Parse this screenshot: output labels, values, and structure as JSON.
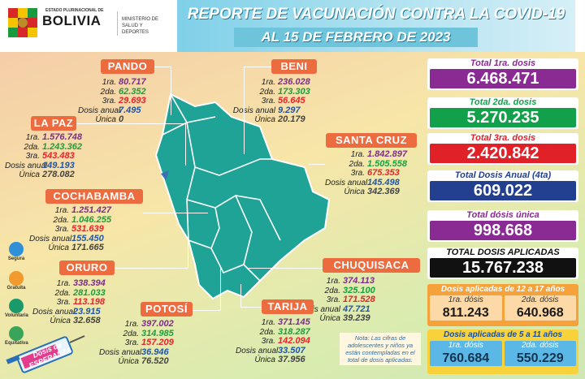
{
  "header": {
    "estado": "ESTADO PLURINACIONAL DE",
    "country": "BOLIVIA",
    "ministry_line1": "MINISTERIO DE",
    "ministry_line2": "SALUD Y DEPORTES",
    "title": "REPORTE DE VACUNACIÓN CONTRA LA COVID-19",
    "date": "AL 15 DE FEBRERO DE 2023"
  },
  "departments": {
    "pando": {
      "name": "PANDO",
      "rows": [
        {
          "k": "1ra.",
          "v": "80.717"
        },
        {
          "k": "2da.",
          "v": "62.352"
        },
        {
          "k": "3ra.",
          "v": "29.693"
        },
        {
          "k": "Dosis anual",
          "v": "7.495"
        },
        {
          "k": "Única",
          "v": "0"
        }
      ]
    },
    "beni": {
      "name": "BENI",
      "rows": [
        {
          "k": "1ra.",
          "v": "236.028"
        },
        {
          "k": "2da.",
          "v": "173.303"
        },
        {
          "k": "3ra.",
          "v": "56.645"
        },
        {
          "k": "Dosis anual",
          "v": "9.297"
        },
        {
          "k": "Única",
          "v": "20.179"
        }
      ]
    },
    "lapaz": {
      "name": "LA PAZ",
      "rows": [
        {
          "k": "1ra.",
          "v": "1.576.748"
        },
        {
          "k": "2da.",
          "v": "1.243.362"
        },
        {
          "k": "3ra.",
          "v": "543.483"
        },
        {
          "k": "Dosis anual",
          "v": "149.193"
        },
        {
          "k": "Única",
          "v": "278.082"
        }
      ]
    },
    "santacruz": {
      "name": "SANTA CRUZ",
      "rows": [
        {
          "k": "1ra.",
          "v": "1.842.897"
        },
        {
          "k": "2da.",
          "v": "1.505.558"
        },
        {
          "k": "3ra.",
          "v": "675.353"
        },
        {
          "k": "Dosis anual",
          "v": "145.498"
        },
        {
          "k": "Única",
          "v": "342.369"
        }
      ]
    },
    "cochabamba": {
      "name": "COCHABAMBA",
      "rows": [
        {
          "k": "1ra.",
          "v": "1.251.427"
        },
        {
          "k": "2da.",
          "v": "1.046.255"
        },
        {
          "k": "3ra.",
          "v": "531.639"
        },
        {
          "k": "Dosis anual",
          "v": "155.450"
        },
        {
          "k": "Única",
          "v": "171.665"
        }
      ]
    },
    "oruro": {
      "name": "ORURO",
      "rows": [
        {
          "k": "1ra.",
          "v": "338.394"
        },
        {
          "k": "2da.",
          "v": "281.033"
        },
        {
          "k": "3ra.",
          "v": "113.198"
        },
        {
          "k": "Dosis anual",
          "v": "23.915"
        },
        {
          "k": "Única",
          "v": "32.658"
        }
      ]
    },
    "chuquisaca": {
      "name": "CHUQUISACA",
      "rows": [
        {
          "k": "1ra.",
          "v": "374.113"
        },
        {
          "k": "2da.",
          "v": "325.100"
        },
        {
          "k": "3ra.",
          "v": "171.528"
        },
        {
          "k": "Dosis anual",
          "v": "47.721"
        },
        {
          "k": "Única",
          "v": "39.239"
        }
      ]
    },
    "potosi": {
      "name": "POTOSÍ",
      "rows": [
        {
          "k": "1ra.",
          "v": "397.002"
        },
        {
          "k": "2da.",
          "v": "314.985"
        },
        {
          "k": "3ra.",
          "v": "157.209"
        },
        {
          "k": "Dosis anual",
          "v": "36.946"
        },
        {
          "k": "Única",
          "v": "76.520"
        }
      ]
    },
    "tarija": {
      "name": "TARIJA",
      "rows": [
        {
          "k": "1ra.",
          "v": "371.145"
        },
        {
          "k": "2da.",
          "v": "318.287"
        },
        {
          "k": "3ra.",
          "v": "142.094"
        },
        {
          "k": "Dosis anual",
          "v": "33.507"
        },
        {
          "k": "Única",
          "v": "37.956"
        }
      ]
    }
  },
  "totals": [
    {
      "label": "Total 1ra. dosis",
      "value": "6.468.471",
      "color": "#8a2a93"
    },
    {
      "label": "Total 2da. dosis",
      "value": "5.270.235",
      "color": "#12a04a"
    },
    {
      "label": "Total 3ra. dosis",
      "value": "2.420.842",
      "color": "#e02127"
    },
    {
      "label": "Total Dosis Anual (4ta)",
      "value": "609.022",
      "color": "#233f8f"
    },
    {
      "label": "Total dósis única",
      "value": "998.668",
      "color": "#8a2a93"
    },
    {
      "label": "TOTAL DOSIS APLICADAS",
      "value": "15.767.238",
      "color": "#111111"
    }
  ],
  "teens": {
    "label": "Dosis aplicadas de 12 a 17 años",
    "c1": "1ra. dósis",
    "v1": "811.243",
    "c2": "2da. dósis",
    "v2": "640.968"
  },
  "kids": {
    "label": "Dosis aplicadas de 5 a 11 años",
    "c1": "1ra. dósis",
    "v1": "760.684",
    "c2": "2da. dósis",
    "v2": "550.229"
  },
  "icons": {
    "segura": "Segura",
    "gratuita": "Gratuita",
    "voluntaria": "Voluntaria",
    "equitativa": "Equitativa"
  },
  "banner_text": "Dosis de ESPERANZA",
  "nota": "Nota: Las cifras de adolescentes y niños ya están contempladas en el total de dosis aplicadas."
}
